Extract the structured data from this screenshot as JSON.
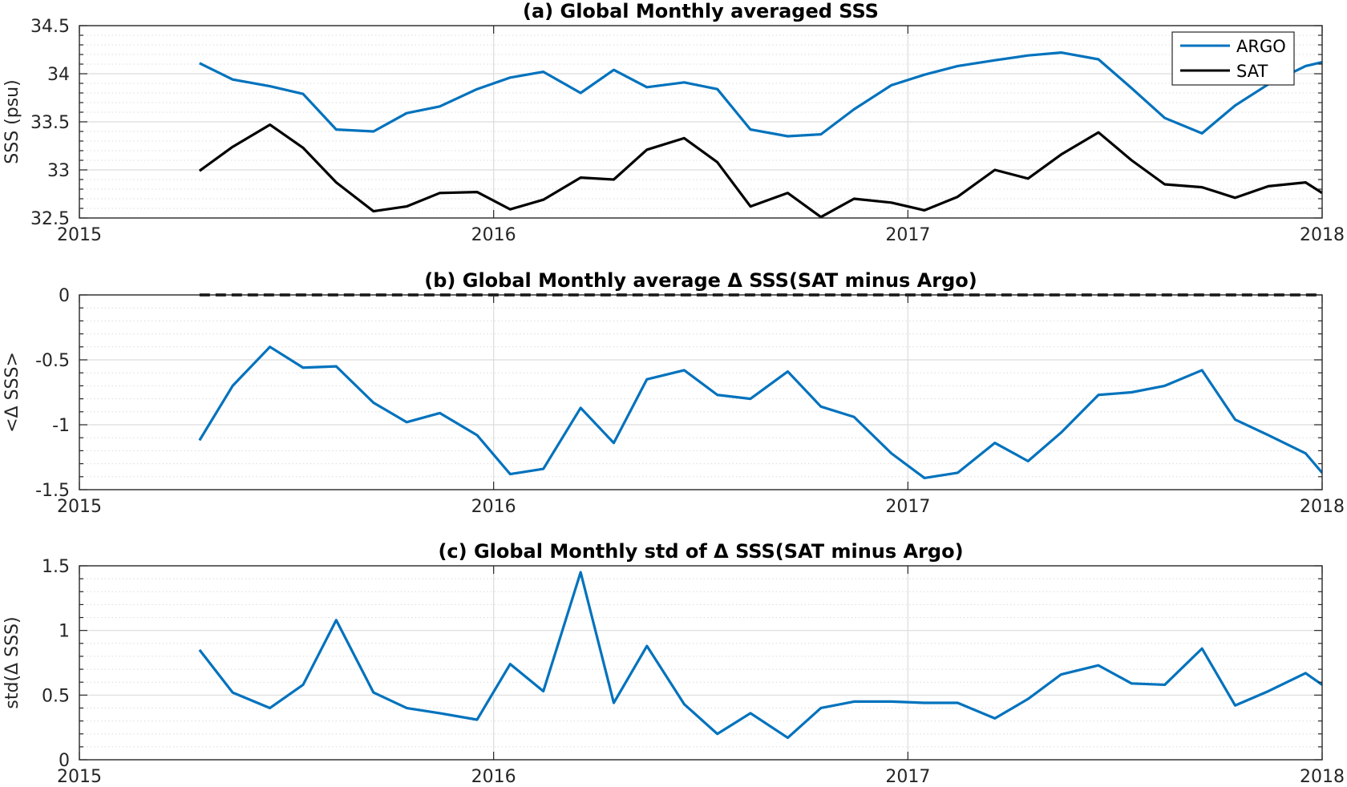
{
  "colors": {
    "argo": "#0072bd",
    "sat": "#000000",
    "major_grid": "#dcdcdc",
    "minor_grid": "#dcdcdc",
    "axes": "#262626"
  },
  "chart_data": [
    {
      "type": "line",
      "title": "(a) Global Monthly averaged SSS",
      "xlabel": "",
      "ylabel": "SSS (psu)",
      "xlim": [
        2015,
        2018
      ],
      "ylim": [
        32.5,
        34.5
      ],
      "xticks": [
        2015,
        2016,
        2017,
        2018
      ],
      "xtick_labels": [
        "2015",
        "2016",
        "2017",
        "2018"
      ],
      "yticks": [
        32.5,
        33,
        33.5,
        34,
        34.5
      ],
      "ytick_labels": [
        "32.5",
        "33",
        "33.5",
        "34",
        "34.5"
      ],
      "grid": "on",
      "legend_position": "top-right",
      "x": [
        2015.29,
        2015.37,
        2015.46,
        2015.54,
        2015.62,
        2015.71,
        2015.79,
        2015.87,
        2015.96,
        2016.04,
        2016.12,
        2016.21,
        2016.29,
        2016.37,
        2016.46,
        2016.54,
        2016.62,
        2016.71,
        2016.79,
        2016.87,
        2016.96,
        2017.04,
        2017.12,
        2017.21,
        2017.29,
        2017.37,
        2017.46,
        2017.54,
        2017.62,
        2017.71,
        2017.79,
        2017.87,
        2017.96,
        2018.0
      ],
      "series": [
        {
          "name": "ARGO",
          "color_key": "argo",
          "values": [
            34.11,
            33.94,
            33.87,
            33.79,
            33.42,
            33.4,
            33.59,
            33.66,
            33.84,
            33.96,
            34.02,
            33.8,
            34.04,
            33.86,
            33.91,
            33.84,
            33.42,
            33.35,
            33.37,
            33.63,
            33.88,
            33.99,
            34.08,
            34.14,
            34.19,
            34.22,
            34.15,
            33.85,
            33.54,
            33.38,
            33.67,
            33.89,
            34.08,
            34.12
          ]
        },
        {
          "name": "SAT",
          "color_key": "sat",
          "values": [
            32.99,
            33.24,
            33.47,
            33.23,
            32.87,
            32.57,
            32.62,
            32.76,
            32.77,
            32.59,
            32.69,
            32.92,
            32.9,
            33.21,
            33.33,
            33.08,
            32.62,
            32.76,
            32.51,
            32.7,
            32.66,
            32.58,
            32.72,
            33.0,
            32.91,
            33.16,
            33.39,
            33.1,
            32.85,
            32.82,
            32.71,
            32.83,
            32.87,
            32.76
          ]
        }
      ]
    },
    {
      "type": "line",
      "title": "(b) Global Monthly average Δ SSS(SAT minus Argo)",
      "xlabel": "",
      "ylabel": "<Δ SSS>",
      "xlim": [
        2015,
        2018
      ],
      "ylim": [
        -1.5,
        0
      ],
      "xticks": [
        2015,
        2016,
        2017,
        2018
      ],
      "xtick_labels": [
        "2015",
        "2016",
        "2017",
        "2018"
      ],
      "yticks": [
        -1.5,
        -1,
        -0.5,
        0
      ],
      "ytick_labels": [
        "-1.5",
        "-1",
        "-0.5",
        "0"
      ],
      "grid": "on",
      "reference_line": {
        "y": 0,
        "x_start": 2015.29,
        "x_end": 2018.0,
        "style": "dashed"
      },
      "x": [
        2015.29,
        2015.37,
        2015.46,
        2015.54,
        2015.62,
        2015.71,
        2015.79,
        2015.87,
        2015.96,
        2016.04,
        2016.12,
        2016.21,
        2016.29,
        2016.37,
        2016.46,
        2016.54,
        2016.62,
        2016.71,
        2016.79,
        2016.87,
        2016.96,
        2017.04,
        2017.12,
        2017.21,
        2017.29,
        2017.37,
        2017.46,
        2017.54,
        2017.62,
        2017.71,
        2017.79,
        2017.87,
        2017.96,
        2018.0
      ],
      "series": [
        {
          "color_key": "argo",
          "values": [
            -1.12,
            -0.7,
            -0.4,
            -0.56,
            -0.55,
            -0.83,
            -0.98,
            -0.91,
            -1.08,
            -1.38,
            -1.34,
            -0.87,
            -1.14,
            -0.65,
            -0.58,
            -0.77,
            -0.8,
            -0.59,
            -0.86,
            -0.94,
            -1.22,
            -1.41,
            -1.37,
            -1.14,
            -1.28,
            -1.06,
            -0.77,
            -0.75,
            -0.7,
            -0.58,
            -0.96,
            -1.08,
            -1.22,
            -1.37
          ]
        }
      ]
    },
    {
      "type": "line",
      "title": "(c) Global Monthly std of Δ SSS(SAT minus Argo)",
      "xlabel": "",
      "ylabel": "std(Δ SSS)",
      "xlim": [
        2015,
        2018
      ],
      "ylim": [
        0,
        1.5
      ],
      "xticks": [
        2015,
        2016,
        2017,
        2018
      ],
      "xtick_labels": [
        "2015",
        "2016",
        "2017",
        "2018"
      ],
      "yticks": [
        0,
        0.5,
        1,
        1.5
      ],
      "ytick_labels": [
        "0",
        "0.5",
        "1",
        "1.5"
      ],
      "grid": "on",
      "x": [
        2015.29,
        2015.37,
        2015.46,
        2015.54,
        2015.62,
        2015.71,
        2015.79,
        2015.87,
        2015.96,
        2016.04,
        2016.12,
        2016.21,
        2016.29,
        2016.37,
        2016.46,
        2016.54,
        2016.62,
        2016.71,
        2016.79,
        2016.87,
        2016.96,
        2017.04,
        2017.12,
        2017.21,
        2017.29,
        2017.37,
        2017.46,
        2017.54,
        2017.62,
        2017.71,
        2017.79,
        2017.87,
        2017.96,
        2018.0
      ],
      "series": [
        {
          "color_key": "argo",
          "values": [
            0.85,
            0.52,
            0.4,
            0.58,
            1.08,
            0.52,
            0.4,
            0.36,
            0.31,
            0.74,
            0.53,
            1.45,
            0.44,
            0.88,
            0.43,
            0.2,
            0.36,
            0.17,
            0.4,
            0.45,
            0.45,
            0.44,
            0.44,
            0.32,
            0.47,
            0.66,
            0.73,
            0.59,
            0.58,
            0.86,
            0.42,
            0.53,
            0.67,
            0.58
          ]
        }
      ]
    }
  ]
}
